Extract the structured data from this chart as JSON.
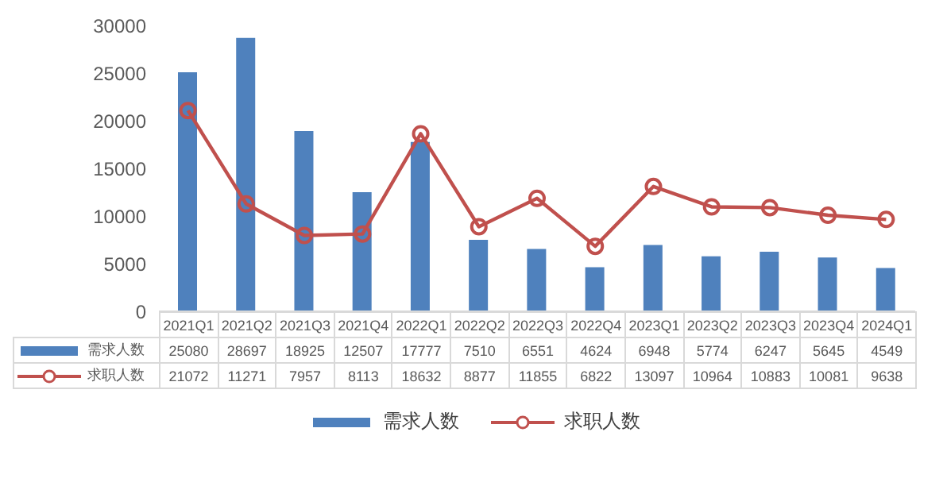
{
  "chart_data": {
    "type": "bar",
    "categories": [
      "2021Q1",
      "2021Q2",
      "2021Q3",
      "2021Q4",
      "2022Q1",
      "2022Q2",
      "2022Q3",
      "2022Q4",
      "2023Q1",
      "2023Q2",
      "2023Q3",
      "2023Q4",
      "2024Q1"
    ],
    "series": [
      {
        "name": "需求人数",
        "type": "bar",
        "color": "#4f81bd",
        "values": [
          25080,
          28697,
          18925,
          12507,
          17777,
          7510,
          6551,
          4624,
          6948,
          5774,
          6247,
          5645,
          4549
        ]
      },
      {
        "name": "求职人数",
        "type": "line",
        "color": "#c0504d",
        "marker": "circle",
        "values": [
          21072,
          11271,
          7957,
          8113,
          18632,
          8877,
          11855,
          6822,
          13097,
          10964,
          10883,
          10081,
          9638
        ]
      }
    ],
    "ylim": [
      0,
      30000
    ],
    "yticks": [
      0,
      5000,
      10000,
      15000,
      20000,
      25000,
      30000
    ],
    "grid": false,
    "legend": "bottom",
    "data_labels": true
  }
}
